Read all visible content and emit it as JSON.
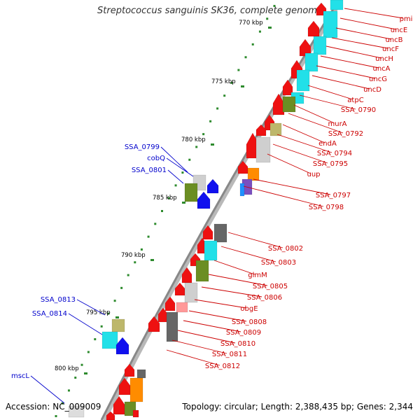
{
  "title": "Streptococcus sanguinis SK36, complete genome",
  "accession": "Accession: NC_009009",
  "summary": "Topology: circular; Length: 2,388,435 bp; Genes: 2,344",
  "colors": {
    "background": "#ffffff",
    "backbone": "#888888",
    "tick": "#2e8b2e",
    "label_right": "#cc0000",
    "label_left": "#0000cc",
    "gene_red": "#ee1111",
    "gene_blue": "#1010ee",
    "gene_cyan": "#22e0e8",
    "gene_olive": "#6b8e23",
    "gene_khaki": "#bdb76b",
    "gene_lightgray": "#cfcfcf",
    "gene_darkgray": "#666666",
    "gene_orange": "#ff8c00",
    "gene_pink": "#ff9999"
  },
  "kbp_labels": [
    "770 kbp",
    "775 kbp",
    "780 kbp",
    "785 kbp",
    "790 kbp",
    "795 kbp",
    "800 kbp"
  ],
  "right_gene_labels": [
    "pmi",
    "uncE",
    "uncB",
    "uncF",
    "uncH",
    "uncA",
    "uncG",
    "uncD",
    "atpC",
    "SSA_0790",
    "murA",
    "SSA_0792",
    "endA",
    "SSA_0794",
    "SSA_0795",
    "uup",
    "SSA_0797",
    "SSA_0798",
    "SSA_0802",
    "SSA_0803",
    "glmM",
    "SSA_0805",
    "SSA_0806",
    "obgE",
    "SSA_0808",
    "SSA_0809",
    "SSA_0810",
    "SSA_0811",
    "SSA_0812"
  ],
  "left_gene_labels": [
    "SSA_0799",
    "cobQ",
    "SSA_0801",
    "SSA_0813",
    "SSA_0814",
    "mscL"
  ]
}
